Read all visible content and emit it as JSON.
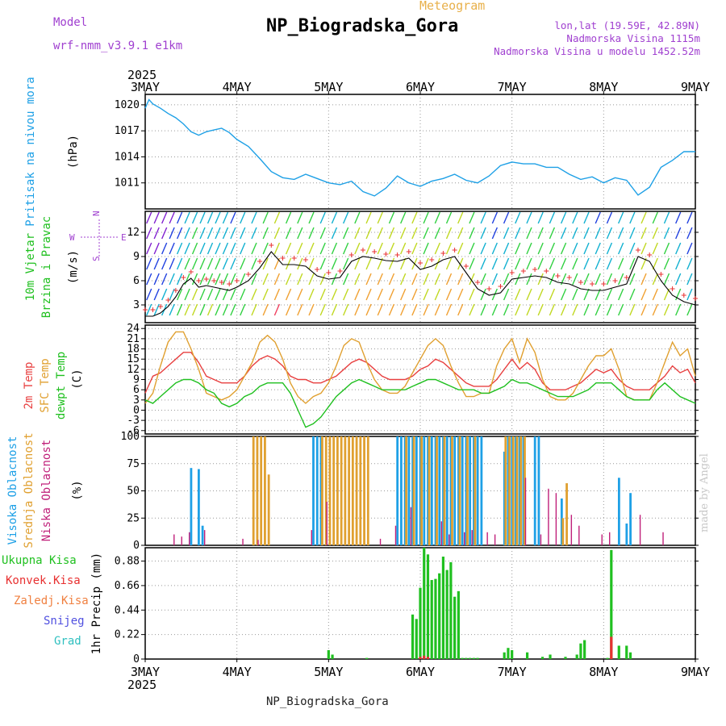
{
  "header": {
    "title": "NP_Biogradska_Gora",
    "subtitle": "Meteogram",
    "model_label": "Model",
    "model_value": "wrf-nmm_v3.9.1 e1km",
    "location_lines": [
      "lon,lat (19.59E, 42.89N)",
      "Nadmorska Visina 1115m",
      "Nadmorska Visina u modelu 1452.52m"
    ]
  },
  "footer": "NP_Biogradska_Gora",
  "watermark": "made by Angel",
  "colors": {
    "pressure": "#1ea0e6",
    "wind_speed": "#000000",
    "gust": "#e83030",
    "t2m": "#e84040",
    "tsfc": "#e0a030",
    "dewpt": "#20c020",
    "high_cloud": "#1ea0e6",
    "mid_cloud": "#e0a030",
    "low_cloud": "#c0207a",
    "total_precip": "#20c020",
    "conv_precip": "#e83030"
  },
  "chart_data": [
    {
      "type": "line",
      "id": "pressure",
      "ylabel_lines": [
        "Pritisak na nivou mora",
        "(hPa)"
      ],
      "x_labels": [
        "3MAY",
        "4MAY",
        "5MAY",
        "6MAY",
        "7MAY",
        "8MAY",
        "9MAY"
      ],
      "year_label": "2025",
      "xlim_hours": [
        0,
        144
      ],
      "ylim": [
        1008,
        1021.2
      ],
      "yticks": [
        1011,
        1014,
        1017,
        1020
      ],
      "series": [
        {
          "x": [
            0,
            1,
            2,
            4,
            6,
            8,
            10,
            12,
            14,
            16,
            18,
            20,
            22,
            24,
            27,
            30,
            33,
            36,
            39,
            42,
            45,
            48,
            51,
            54,
            57,
            60,
            63,
            66,
            69,
            72,
            75,
            78,
            81,
            84,
            87,
            90,
            93,
            96,
            99,
            102,
            105,
            108,
            111,
            114,
            117,
            120,
            123,
            126,
            129,
            132,
            135,
            138,
            141,
            144
          ],
          "values": [
            1019.6,
            1020.6,
            1020.1,
            1019.6,
            1019.0,
            1018.5,
            1017.8,
            1016.9,
            1016.5,
            1016.9,
            1017.1,
            1017.3,
            1016.8,
            1016.0,
            1015.2,
            1013.8,
            1012.3,
            1011.6,
            1011.4,
            1012.0,
            1011.5,
            1011.0,
            1010.8,
            1011.2,
            1010.0,
            1009.5,
            1010.4,
            1011.8,
            1011.0,
            1010.6,
            1011.2,
            1011.5,
            1012.0,
            1011.3,
            1011.0,
            1011.8,
            1013.0,
            1013.4,
            1013.2,
            1013.2,
            1012.8,
            1012.8,
            1012.0,
            1011.4,
            1011.7,
            1011.0,
            1011.6,
            1011.3,
            1009.6,
            1010.5,
            1012.8,
            1013.6,
            1014.6,
            1014.6
          ]
        }
      ]
    },
    {
      "type": "line",
      "id": "wind",
      "ylabel_lines": [
        "10m Vjetar",
        "Brzina i Pravac",
        "(m/s)"
      ],
      "compass": {
        "n": "N",
        "s": "S",
        "e": "E",
        "w": "W"
      },
      "xlim_hours": [
        0,
        144
      ],
      "ylim": [
        0.8,
        14.6
      ],
      "yticks": [
        3,
        6,
        9,
        12
      ],
      "series": [
        {
          "x": [
            0,
            2,
            4,
            6,
            8,
            10,
            12,
            14,
            16,
            18,
            20,
            22,
            24,
            27,
            30,
            33,
            36,
            39,
            42,
            45,
            48,
            51,
            54,
            57,
            60,
            63,
            66,
            69,
            72,
            75,
            78,
            81,
            84,
            87,
            90,
            93,
            96,
            99,
            102,
            105,
            108,
            111,
            114,
            117,
            120,
            123,
            126,
            129,
            132,
            135,
            138,
            141,
            144
          ],
          "values": [
            1.6,
            1.6,
            2.0,
            2.8,
            4.0,
            5.6,
            6.3,
            5.2,
            5.4,
            5.2,
            5.0,
            4.8,
            5.2,
            6.0,
            7.6,
            9.6,
            8.0,
            8.0,
            7.8,
            6.6,
            6.2,
            6.4,
            8.4,
            9.0,
            8.8,
            8.5,
            8.4,
            8.8,
            7.4,
            7.8,
            8.6,
            9.0,
            7.0,
            5.0,
            4.2,
            4.5,
            6.2,
            6.4,
            6.6,
            6.4,
            5.8,
            5.6,
            5.0,
            4.8,
            4.8,
            5.2,
            5.6,
            9.0,
            8.4,
            6.0,
            4.2,
            3.4,
            3.0
          ]
        }
      ]
    },
    {
      "type": "line",
      "id": "temperature",
      "ylabel_lines": [
        "2m Temp",
        "SFC Temp",
        "dewpt Temp",
        "(C)"
      ],
      "xlim_hours": [
        0,
        144
      ],
      "ylim": [
        -7,
        25
      ],
      "yticks": [
        -6,
        -3,
        0,
        3,
        6,
        9,
        12,
        15,
        18,
        21,
        24
      ],
      "x": [
        0,
        2,
        4,
        6,
        8,
        10,
        12,
        14,
        16,
        18,
        20,
        22,
        24,
        26,
        28,
        30,
        32,
        34,
        36,
        38,
        40,
        42,
        44,
        46,
        48,
        50,
        52,
        54,
        56,
        58,
        60,
        62,
        64,
        66,
        68,
        70,
        72,
        74,
        76,
        78,
        80,
        82,
        84,
        86,
        88,
        90,
        92,
        94,
        96,
        98,
        100,
        102,
        104,
        106,
        108,
        110,
        112,
        114,
        116,
        118,
        120,
        122,
        124,
        126,
        128,
        130,
        132,
        134,
        136,
        138,
        140,
        142,
        144
      ],
      "series": [
        {
          "name": "2m Temp",
          "values": [
            5,
            10,
            11,
            13,
            15,
            17,
            17,
            14,
            10,
            9,
            8,
            8,
            8,
            10,
            13,
            15,
            16,
            15,
            13,
            10,
            9,
            9,
            8,
            8,
            9,
            10,
            12,
            14,
            15,
            14,
            12,
            10,
            9,
            9,
            9,
            10,
            12,
            13,
            15,
            14,
            12,
            10,
            8,
            7,
            7,
            7,
            9,
            12,
            15,
            12,
            14,
            12,
            8,
            6,
            6,
            6,
            7,
            8,
            10,
            12,
            11,
            12,
            9,
            7,
            6,
            6,
            6,
            8,
            10,
            13,
            11,
            12,
            8
          ]
        },
        {
          "name": "SFC Temp",
          "values": [
            2,
            5,
            13,
            20,
            23,
            23,
            18,
            12,
            5,
            4,
            3,
            4,
            6,
            10,
            14,
            20,
            22,
            20,
            15,
            8,
            4,
            2,
            4,
            5,
            8,
            13,
            19,
            21,
            20,
            14,
            9,
            6,
            5,
            5,
            7,
            11,
            15,
            19,
            21,
            19,
            13,
            8,
            4,
            4,
            5,
            5,
            13,
            18,
            21,
            14,
            21,
            17,
            9,
            4,
            3,
            3,
            5,
            9,
            13,
            16,
            16,
            18,
            12,
            4,
            3,
            3,
            3,
            8,
            14,
            20,
            16,
            18,
            10
          ]
        },
        {
          "name": "dewpt Temp",
          "values": [
            3,
            2,
            4,
            6,
            8,
            9,
            9,
            8,
            6,
            5,
            2,
            1,
            2,
            4,
            5,
            7,
            8,
            8,
            8,
            5,
            0,
            -5,
            -4,
            -2,
            1,
            4,
            6,
            8,
            9,
            8,
            7,
            6,
            6,
            6,
            6,
            7,
            8,
            9,
            9,
            8,
            7,
            6,
            6,
            6,
            5,
            5,
            6,
            7,
            9,
            8,
            8,
            7,
            6,
            5,
            4,
            4,
            4,
            5,
            6,
            8,
            8,
            8,
            6,
            4,
            3,
            3,
            3,
            6,
            8,
            6,
            4,
            3,
            2
          ]
        }
      ]
    },
    {
      "type": "bar",
      "id": "cloud",
      "ylabel_lines": [
        "Visoka Oblacnost",
        "Srednja Oblacnost",
        "Niska Oblacnost",
        "(%)"
      ],
      "xlim_hours": [
        0,
        144
      ],
      "ylim": [
        0,
        100
      ],
      "yticks": [
        0,
        25,
        50,
        75,
        100
      ],
      "series": [
        {
          "name": "Visoka Oblacnost",
          "x": [
            12,
            14,
            15,
            44,
            45,
            46,
            66,
            67,
            68,
            69,
            70,
            71,
            72,
            73,
            74,
            75,
            76,
            77,
            78,
            79,
            80,
            81,
            82,
            83,
            84,
            85,
            86,
            87,
            88,
            94,
            95,
            96,
            97,
            98,
            99,
            102,
            103,
            109,
            124,
            126,
            127
          ],
          "values": [
            71,
            70,
            18,
            100,
            100,
            100,
            100,
            100,
            100,
            100,
            100,
            100,
            100,
            100,
            100,
            100,
            100,
            100,
            100,
            100,
            100,
            100,
            100,
            100,
            100,
            100,
            100,
            100,
            100,
            86,
            100,
            100,
            100,
            100,
            100,
            100,
            100,
            43,
            62,
            20,
            48
          ]
        },
        {
          "name": "Srednja Oblacnost",
          "x": [
            28,
            29,
            30,
            31,
            32,
            46,
            47,
            48,
            49,
            50,
            51,
            52,
            53,
            54,
            55,
            56,
            57,
            58,
            68,
            70,
            72,
            74,
            76,
            78,
            80,
            82,
            84,
            86,
            94,
            95,
            96,
            97,
            98,
            99,
            109,
            110
          ],
          "values": [
            100,
            100,
            100,
            100,
            65,
            100,
            100,
            100,
            100,
            100,
            100,
            100,
            100,
            100,
            100,
            100,
            100,
            100,
            100,
            100,
            100,
            100,
            100,
            100,
            100,
            100,
            100,
            100,
            100,
            100,
            100,
            100,
            100,
            100,
            25,
            57
          ]
        },
        {
          "name": "Niska Oblacnost",
          "x": [
            8,
            10,
            12,
            16,
            26,
            30,
            44,
            48,
            62,
            66,
            70,
            78,
            80,
            84,
            86,
            90,
            92,
            100,
            104,
            106,
            108,
            112,
            114,
            120,
            122,
            130,
            136
          ],
          "values": [
            10,
            8,
            12,
            14,
            6,
            5,
            14,
            40,
            6,
            18,
            35,
            22,
            10,
            12,
            14,
            12,
            10,
            62,
            10,
            52,
            48,
            28,
            18,
            10,
            12,
            28,
            12
          ]
        }
      ]
    },
    {
      "type": "bar",
      "id": "precip",
      "ylabel_lines": [
        "1hr Precip (mm)"
      ],
      "legend": [
        "Ukupna Kisa",
        "Konvek.Kisa",
        "Zaledj.Kisa",
        "Snijeg",
        "Grad"
      ],
      "xlim_hours": [
        0,
        144
      ],
      "ylim": [
        0,
        1.0
      ],
      "yticks": [
        0,
        0.22,
        0.44,
        0.66,
        0.88
      ],
      "series": [
        {
          "name": "Ukupna Kisa",
          "x": [
            48,
            49,
            58,
            70,
            71,
            72,
            73,
            74,
            75,
            76,
            77,
            78,
            79,
            80,
            81,
            82,
            83,
            84,
            85,
            86,
            87,
            94,
            95,
            96,
            100,
            104,
            106,
            110,
            113,
            114,
            115,
            121,
            122,
            124,
            126,
            127
          ],
          "values": [
            0.08,
            0.04,
            0.01,
            0.4,
            0.36,
            0.64,
            1.0,
            0.94,
            0.71,
            0.72,
            0.77,
            0.92,
            0.8,
            0.87,
            0.56,
            0.61,
            0.01,
            0.01,
            0.01,
            0.01,
            0.01,
            0.06,
            0.1,
            0.08,
            0.06,
            0.02,
            0.04,
            0.02,
            0.04,
            0.14,
            0.17,
            0.01,
            0.98,
            0.12,
            0.12,
            0.06
          ]
        },
        {
          "name": "Konvek.Kisa",
          "x": [
            72,
            73,
            74,
            122
          ],
          "values": [
            0.02,
            0.03,
            0.02,
            0.2
          ]
        }
      ]
    }
  ]
}
